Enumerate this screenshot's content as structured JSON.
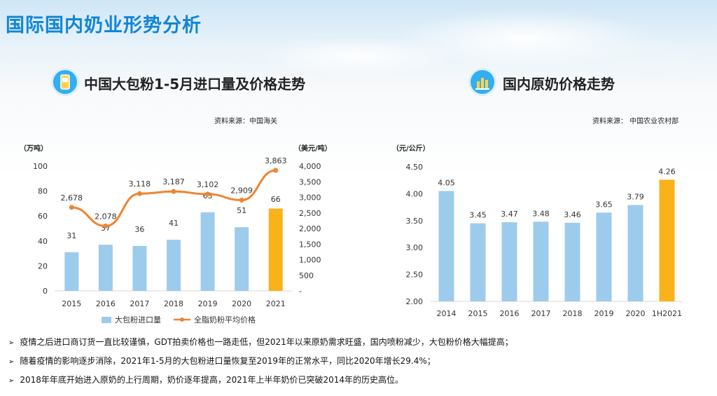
{
  "page": {
    "title": "国际国内奶业形势分析"
  },
  "left_panel": {
    "title": "中国大包粉1-5月进口量及价格走势",
    "source": "资料来源：中国海关",
    "left_unit": "（万吨）",
    "right_unit": "（美元/吨）",
    "legend_bar": "大包粉进口量",
    "legend_line": "全脂奶粉平均价格"
  },
  "right_panel": {
    "title": "国内原奶价格走势",
    "source": "资料来源：  中国农业农村部",
    "unit": "（元/公斤）"
  },
  "colors": {
    "bar_blue": "#9dcbec",
    "bar_highlight": "#f9b21a",
    "line_orange": "#ef8432",
    "title_blue": "#1186d6"
  },
  "chart_data": [
    {
      "type": "bar",
      "categories": [
        "2015",
        "2016",
        "2017",
        "2018",
        "2019",
        "2020",
        "2021"
      ],
      "series": [
        {
          "name": "大包粉进口量",
          "type": "bar",
          "axis": "left",
          "values": [
            31,
            37,
            36,
            41,
            63,
            51,
            66
          ],
          "labels": [
            "31",
            "37",
            "36",
            "41",
            "63",
            "51",
            "66"
          ]
        },
        {
          "name": "全脂奶粉平均价格",
          "type": "line",
          "axis": "right",
          "values": [
            2678,
            2078,
            3118,
            3187,
            3102,
            2909,
            3863
          ],
          "labels": [
            "2,678",
            "2,078",
            "3,118",
            "3,187",
            "3,102",
            "2,909",
            "3,863"
          ]
        }
      ],
      "left_axis": {
        "ylim": [
          0,
          100
        ],
        "ticks": [
          "0",
          "20",
          "40",
          "60",
          "80",
          "100"
        ]
      },
      "right_axis": {
        "ylim": [
          0,
          4000
        ],
        "ticks": [
          "-",
          "500",
          "1,000",
          "1,500",
          "2,000",
          "2,500",
          "3,000",
          "3,500",
          "4,000"
        ]
      },
      "highlight_index": 6,
      "grid": false,
      "legend_placement": "bottom"
    },
    {
      "type": "bar",
      "categories": [
        "2014",
        "2015",
        "2016",
        "2017",
        "2018",
        "2019",
        "2020",
        "1H2021"
      ],
      "values": [
        4.05,
        3.45,
        3.47,
        3.48,
        3.46,
        3.65,
        3.79,
        4.26
      ],
      "labels": [
        "4.05",
        "3.45",
        "3.47",
        "3.48",
        "3.46",
        "3.65",
        "3.79",
        "4.26"
      ],
      "ylim": [
        2.0,
        4.5
      ],
      "yticks": [
        "2.00",
        "2.50",
        "3.00",
        "3.50",
        "4.00",
        "4.50"
      ],
      "highlight_index": 7,
      "grid": false
    }
  ],
  "bullets": [
    "疫情之后进口商订货一直比较谨慎，GDT拍卖价格也一路走低，但2021年以来原奶需求旺盛，国内喷粉减少，大包粉价格大幅提高；",
    "随着疫情的影响逐步消除，2021年1-5月的大包粉进口量恢复至2019年的正常水平，同比2020年增长29.4%；",
    "2018年年底开始进入原奶的上行周期，奶价逐年提高，2021年上半年奶价已突破2014年的历史高位。"
  ],
  "bullet_marker": "➢"
}
